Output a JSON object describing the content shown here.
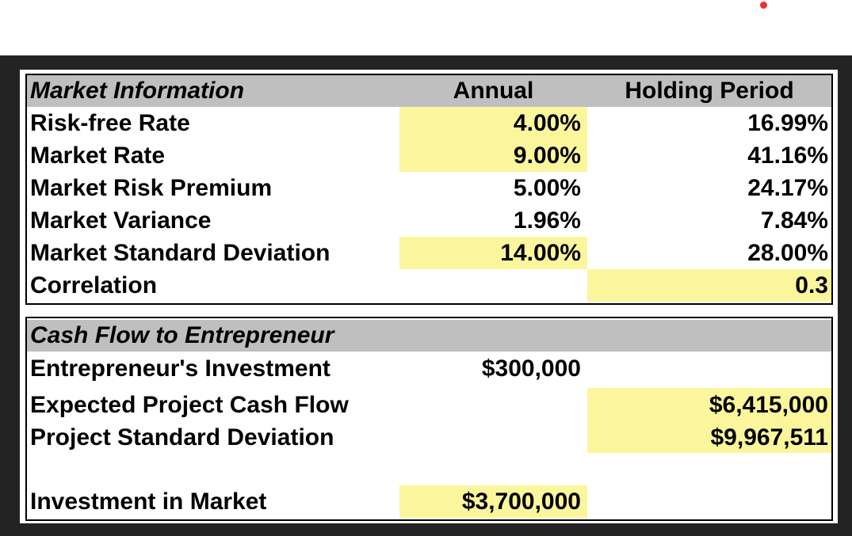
{
  "market": {
    "title": "Market Information",
    "col_annual": "Annual",
    "col_holding": "Holding Period",
    "rows": [
      {
        "label": "Risk-free Rate",
        "annual": "4.00%",
        "holding": "16.99%"
      },
      {
        "label": "Market Rate",
        "annual": "9.00%",
        "holding": "41.16%"
      },
      {
        "label": "Market Risk Premium",
        "annual": "5.00%",
        "holding": "24.17%"
      },
      {
        "label": "Market Variance",
        "annual": "1.96%",
        "holding": "7.84%"
      },
      {
        "label": "Market Standard Deviation",
        "annual": "14.00%",
        "holding": "28.00%"
      },
      {
        "label": "Correlation",
        "annual": "",
        "holding": "0.3"
      }
    ]
  },
  "cashflow": {
    "title": "Cash Flow to Entrepreneur",
    "rows": [
      {
        "label": "Entrepreneur's Investment",
        "annual": "$300,000",
        "holding": ""
      },
      {
        "label": "Expected Project Cash Flow",
        "annual": "",
        "holding": "$6,415,000"
      },
      {
        "label": "Project Standard Deviation",
        "annual": "",
        "holding": "$9,967,511"
      },
      {
        "label": "Investment in Market",
        "annual": "$3,700,000",
        "holding": ""
      }
    ]
  },
  "colors": {
    "input_highlight": "#fbf69c",
    "header_fill": "#bfbfbf",
    "frame": "#232323",
    "indicator_dot": "#e8323a"
  }
}
